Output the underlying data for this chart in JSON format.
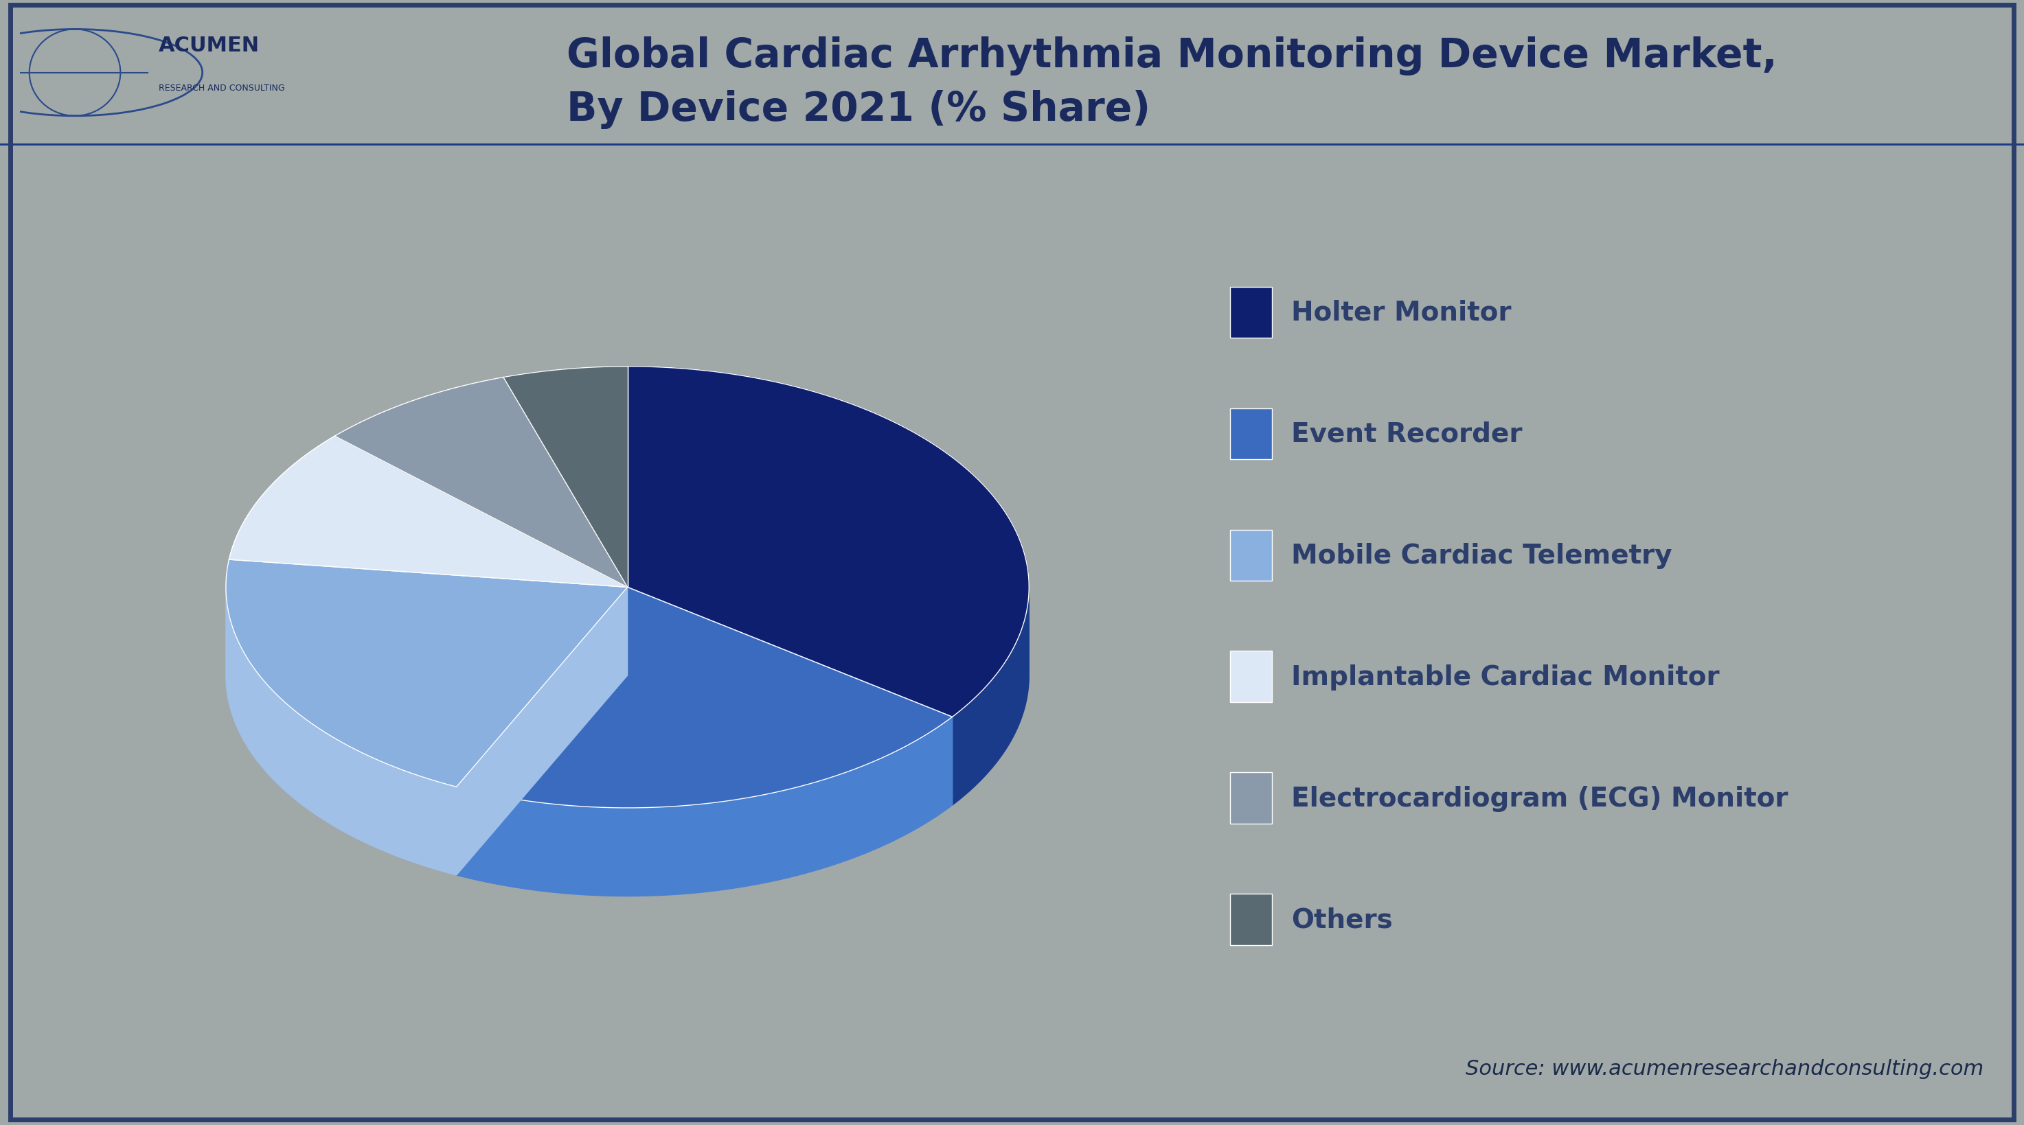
{
  "title_line1": "Global Cardiac Arrhythmia Monitoring Device Market,",
  "title_line2": "By Device 2021 (% Share)",
  "background_color": "#a0a8a8",
  "header_bg_color": "#2c3e6b",
  "title_color": "#1a2a5e",
  "legend_text_color": "#2c3e6b",
  "source_text": "Source: www.acumenresearchandconsulting.com",
  "slices": [
    {
      "label": "Holter Monitor",
      "value": 35,
      "color_top": "#0d1f6e",
      "color_side": "#1a3a8a"
    },
    {
      "label": "Event Recorder",
      "value": 22,
      "color_top": "#3a6bbf",
      "color_side": "#4a80d0"
    },
    {
      "label": "Mobile Cardiac Telemetry",
      "value": 20,
      "color_top": "#8ab0df",
      "color_side": "#a0c0e8"
    },
    {
      "label": "Implantable Cardiac Monitor",
      "value": 10,
      "color_top": "#dce8f5",
      "color_side": "#c8d8ea"
    },
    {
      "label": "Electrocardiogram (ECG) Monitor",
      "value": 8,
      "color_top": "#8a9aaa",
      "color_side": "#7a8898"
    },
    {
      "label": "Others",
      "value": 5,
      "color_top": "#5a6a72",
      "color_side": "#4a5a62"
    }
  ],
  "legend_colors": [
    "#0d1f6e",
    "#3a6bbf",
    "#8ab0df",
    "#dce8f5",
    "#8a9aaa",
    "#5a6a72"
  ]
}
